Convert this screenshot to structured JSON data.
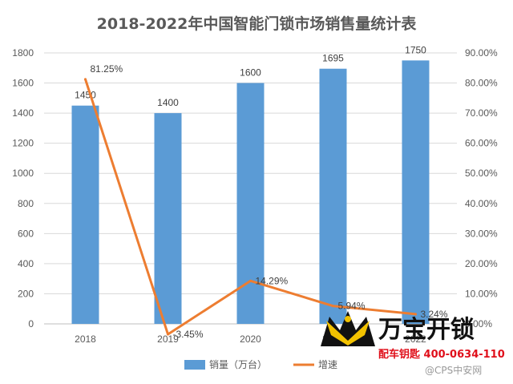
{
  "chart_data": {
    "type": "bar",
    "title": "2018-2022年中国智能门锁市场销售量统计表",
    "categories": [
      "2018",
      "2019",
      "2020",
      "2021",
      "2022"
    ],
    "series": [
      {
        "name": "销量（万台）",
        "type": "bar",
        "axis": "left",
        "color": "#5b9bd5",
        "values": [
          1450,
          1400,
          1600,
          1695,
          1750
        ],
        "labels": [
          "1450",
          "1400",
          "1600",
          "1695",
          "1750"
        ]
      },
      {
        "name": "增速",
        "type": "line",
        "axis": "right",
        "color": "#ed7d31",
        "values": [
          81.25,
          -3.45,
          14.29,
          5.94,
          3.24
        ],
        "labels": [
          "81.25%",
          "-3.45%",
          "14.29%",
          "5.94%",
          "3.24%"
        ]
      }
    ],
    "y_left": {
      "range": [
        0,
        1800
      ],
      "ticks": [
        "0",
        "200",
        "400",
        "600",
        "800",
        "1000",
        "1200",
        "1400",
        "1600",
        "1800"
      ]
    },
    "y_right": {
      "range": [
        0,
        90
      ],
      "ticks": [
        "0.00%",
        "10.00%",
        "20.00%",
        "30.00%",
        "40.00%",
        "50.00%",
        "60.00%",
        "70.00%",
        "80.00%",
        "90.00%"
      ]
    },
    "grid": true,
    "legend_position": "bottom"
  },
  "watermark": {
    "brand": "万宝开锁",
    "phone": "配车钥匙 400-0634-110",
    "source": "@CPS中安网",
    "logo_icon": "crown-lock-logo-icon"
  }
}
